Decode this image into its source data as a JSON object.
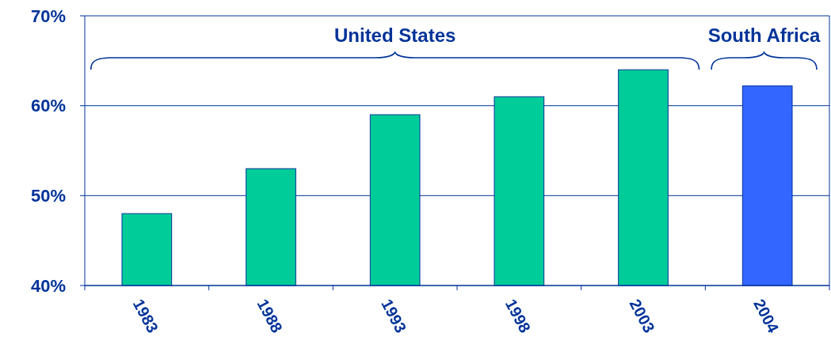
{
  "chart_data": {
    "type": "bar",
    "categories": [
      "1983",
      "1988",
      "1993",
      "1998",
      "2003",
      "2004"
    ],
    "values": [
      48,
      53,
      59,
      61,
      64,
      62.2
    ],
    "colors": [
      "#00cc99",
      "#00cc99",
      "#00cc99",
      "#00cc99",
      "#00cc99",
      "#3366ff"
    ],
    "ylim": [
      40,
      70
    ],
    "yticks": [
      {
        "value": 40,
        "label": "40%"
      },
      {
        "value": 50,
        "label": "50%"
      },
      {
        "value": 60,
        "label": "60%"
      },
      {
        "value": 70,
        "label": "70%"
      }
    ],
    "grid": "y",
    "annotations": [
      "United States",
      "South Africa"
    ]
  }
}
